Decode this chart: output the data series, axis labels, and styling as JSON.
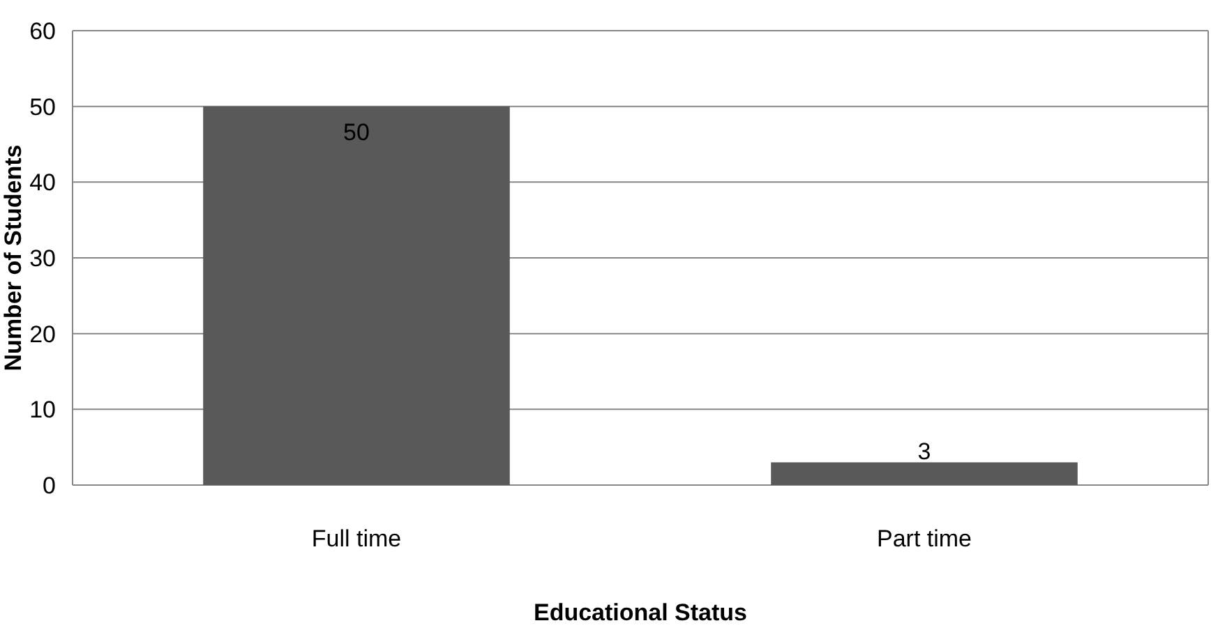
{
  "chart_data": {
    "type": "bar",
    "xlabel": "Educational Status",
    "ylabel": "Number of Students",
    "categories": [
      "Full time",
      "Part time"
    ],
    "values": [
      50,
      3
    ],
    "color": "#595959",
    "ylim": [
      0,
      60
    ],
    "yticks": [
      0,
      10,
      20,
      30,
      40,
      50,
      60
    ],
    "grid": "y",
    "data_labels": true
  }
}
